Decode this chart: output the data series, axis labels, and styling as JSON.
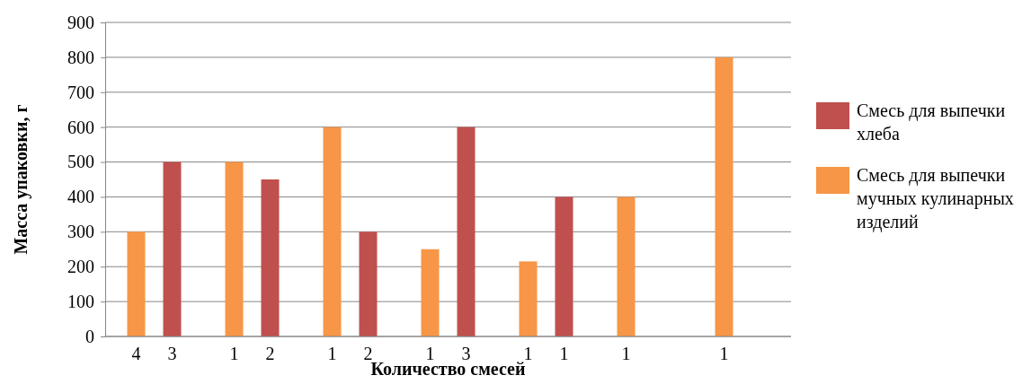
{
  "chart_data": {
    "type": "bar",
    "xlabel": "Количество смесей",
    "ylabel": "Масса упаковки,  г",
    "categories": [
      "4",
      "3",
      "1",
      "2",
      "1",
      "2",
      "1",
      "3",
      "1",
      "1",
      "1",
      null,
      "1",
      null
    ],
    "series": [
      {
        "name": "Смесь для выпечки хлеба",
        "color": "#c0504d",
        "values": [
          null,
          500,
          null,
          450,
          null,
          300,
          null,
          600,
          null,
          400,
          null,
          null,
          null,
          null
        ]
      },
      {
        "name": "Смесь для выпечки мучных кулинарных изделий",
        "color": "#f79646",
        "values": [
          300,
          null,
          500,
          null,
          600,
          null,
          250,
          null,
          215,
          null,
          400,
          null,
          800,
          null
        ]
      }
    ],
    "ylim": [
      0,
      900
    ],
    "yticks": [
      0,
      100,
      200,
      300,
      400,
      500,
      600,
      700,
      800,
      900
    ],
    "grid": "y",
    "legend": "right"
  }
}
